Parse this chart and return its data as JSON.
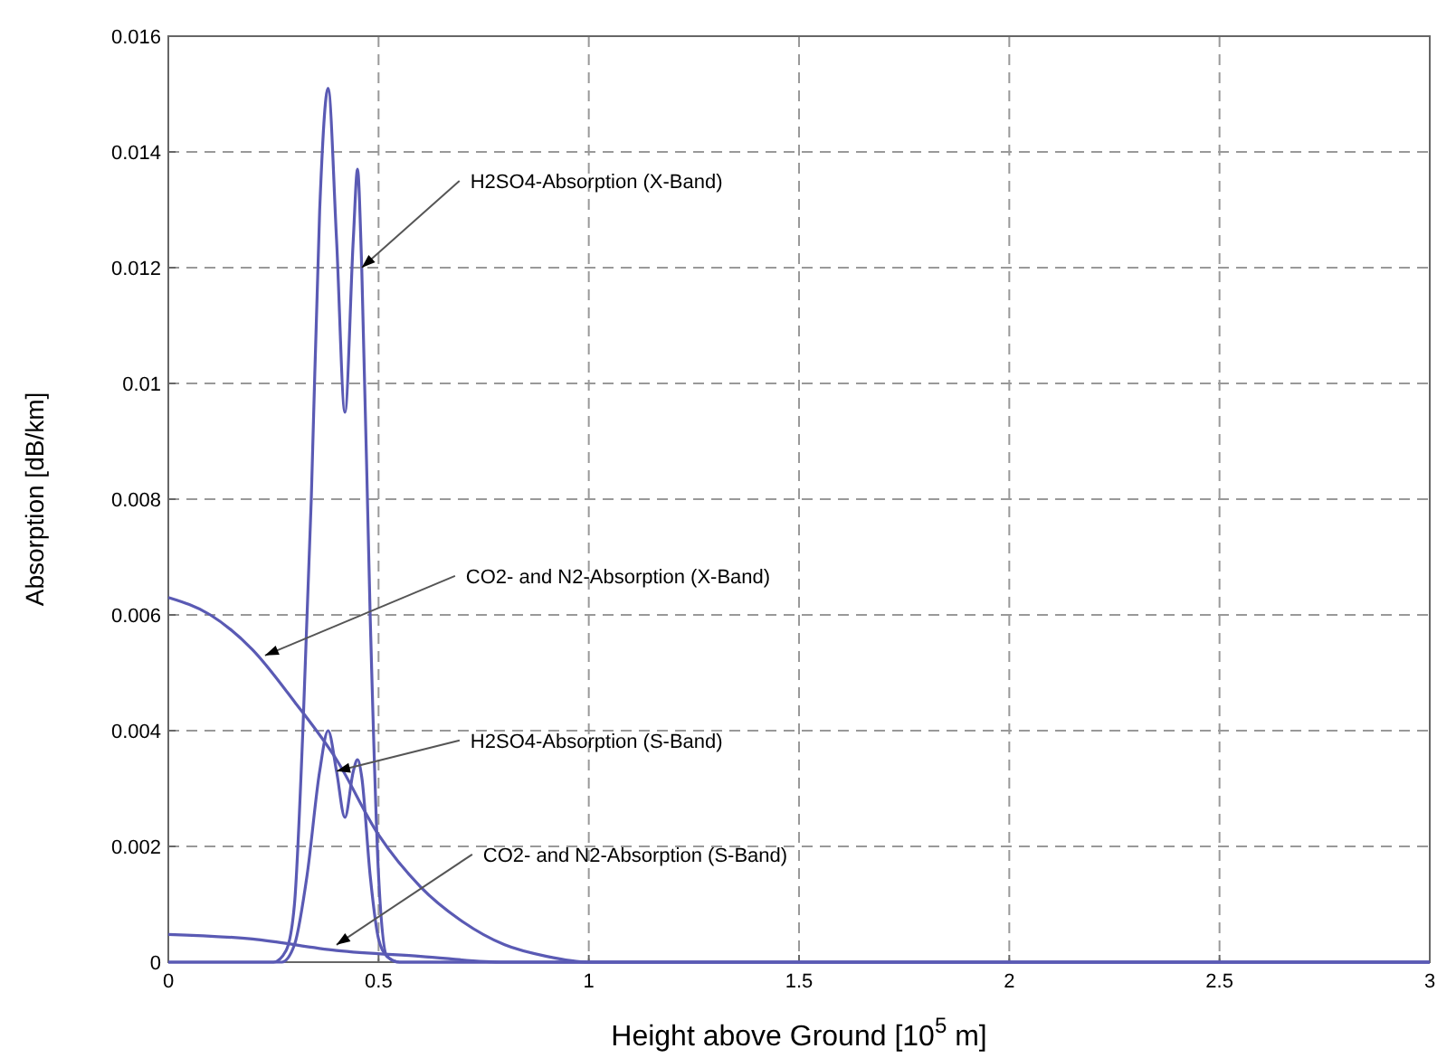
{
  "chart_data": {
    "type": "line",
    "xlabel": "Height above Ground [10$^{5}$ m]",
    "ylabel": "Absorption [dB/km]",
    "xlim": [
      0,
      3
    ],
    "xticks": [
      0,
      0.5,
      1,
      1.5,
      2,
      2.5,
      3
    ],
    "ylim": [
      0,
      0.016
    ],
    "yticks": [
      0,
      0.002,
      0.004,
      0.006,
      0.008,
      0.01,
      0.012,
      0.014,
      0.016
    ],
    "grid": true,
    "line_style": "solid",
    "series": [
      {
        "color": "#5a5ab4",
        "x": [
          0,
          0.25,
          0.28,
          0.3,
          0.32,
          0.34,
          0.36,
          0.38,
          0.4,
          0.42,
          0.44,
          0.45,
          0.46,
          0.48,
          0.5,
          0.52,
          0.55,
          3
        ],
        "values": [
          0,
          0,
          0.0002,
          0.001,
          0.004,
          0.008,
          0.013,
          0.0151,
          0.0125,
          0.0095,
          0.0125,
          0.0137,
          0.012,
          0.006,
          0.0015,
          0.0001,
          0,
          0
        ]
      },
      {
        "color": "#5a5ab4",
        "x": [
          0,
          0.27,
          0.3,
          0.33,
          0.36,
          0.38,
          0.4,
          0.42,
          0.44,
          0.45,
          0.46,
          0.48,
          0.5,
          0.52,
          0.55,
          3
        ],
        "values": [
          0,
          0,
          0.0003,
          0.0015,
          0.0033,
          0.004,
          0.0033,
          0.0025,
          0.0033,
          0.0035,
          0.0032,
          0.0015,
          0.0004,
          0.0001,
          0,
          0
        ]
      },
      {
        "color": "#5a5ab4",
        "x": [
          0,
          0.1,
          0.2,
          0.3,
          0.4,
          0.5,
          0.6,
          0.7,
          0.8,
          0.9,
          1,
          3
        ],
        "values": [
          0.0063,
          0.006,
          0.0054,
          0.0045,
          0.0035,
          0.0022,
          0.0013,
          0.0007,
          0.0003,
          0.0001,
          0,
          0
        ]
      },
      {
        "color": "#5a5ab4",
        "x": [
          0,
          0.2,
          0.4,
          0.6,
          0.8,
          1,
          3
        ],
        "values": [
          0.00048,
          0.0004,
          0.0002,
          0.0001,
          0,
          0,
          0
        ]
      }
    ],
    "annotations": [
      {
        "text": "H2SO4-Absorption (X-Band)",
        "x": 0.46,
        "y": 0.012
      },
      {
        "text": "CO2- and N2-Absorption (X-Band)",
        "x": 0.23,
        "y": 0.0053
      },
      {
        "text": "H2SO4-Absorption (S-Band)",
        "x": 0.4,
        "y": 0.0033
      },
      {
        "text": "CO2- and N2-Absorption (S-Band)",
        "x": 0.4,
        "y": 0.0003
      }
    ]
  }
}
